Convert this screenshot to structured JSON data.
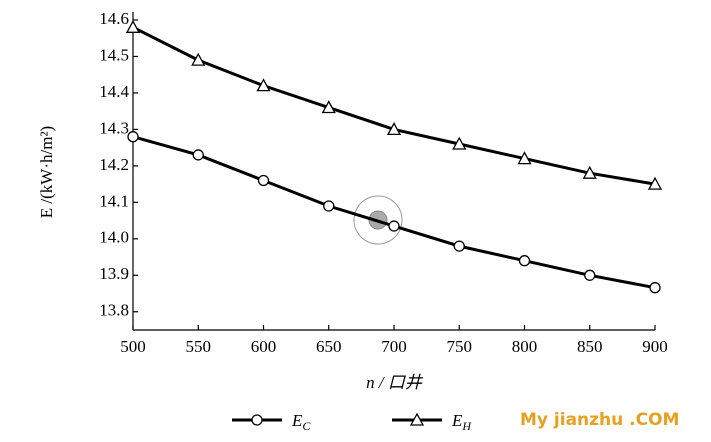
{
  "chart_data": {
    "type": "line",
    "x_label": "n / 口井",
    "y_label": "E /(kW·h/m²)",
    "x": [
      500,
      550,
      600,
      650,
      700,
      750,
      800,
      850,
      900
    ],
    "series": [
      {
        "name": "E_C",
        "color": "#000000",
        "marker": "circle",
        "values": [
          14.28,
          14.23,
          14.16,
          14.09,
          14.035,
          13.98,
          13.94,
          13.9,
          13.866
        ]
      },
      {
        "name": "E_H",
        "color": "#000000",
        "marker": "triangle",
        "values": [
          14.58,
          14.49,
          14.42,
          14.36,
          14.3,
          14.26,
          14.22,
          14.18,
          14.15
        ]
      }
    ],
    "xlim": [
      500,
      900
    ],
    "xticks": [
      500,
      550,
      600,
      650,
      700,
      750,
      800,
      850,
      900
    ],
    "ylim": [
      13.75,
      14.6
    ],
    "yticks": [
      13.8,
      13.9,
      {
        "value": 14,
        "label": "14.0"
      },
      14.1,
      14.2,
      14.3,
      14.4,
      14.5,
      14.6
    ],
    "legend": "bottom",
    "watermark": "My jianzhu .COM"
  }
}
